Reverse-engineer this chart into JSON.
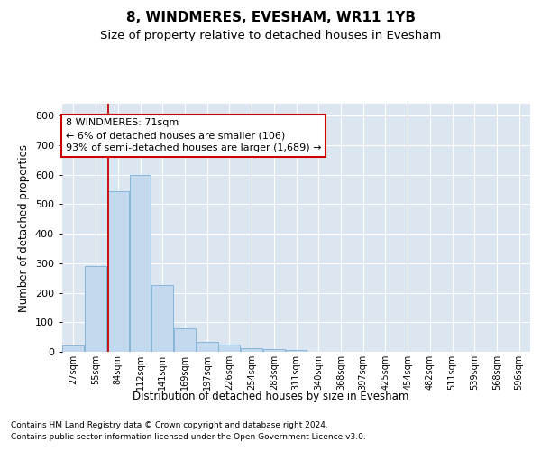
{
  "title": "8, WINDMERES, EVESHAM, WR11 1YB",
  "subtitle": "Size of property relative to detached houses in Evesham",
  "xlabel": "Distribution of detached houses by size in Evesham",
  "ylabel": "Number of detached properties",
  "footer_line1": "Contains HM Land Registry data © Crown copyright and database right 2024.",
  "footer_line2": "Contains public sector information licensed under the Open Government Licence v3.0.",
  "bar_labels": [
    "27sqm",
    "55sqm",
    "84sqm",
    "112sqm",
    "141sqm",
    "169sqm",
    "197sqm",
    "226sqm",
    "254sqm",
    "283sqm",
    "311sqm",
    "340sqm",
    "368sqm",
    "397sqm",
    "425sqm",
    "454sqm",
    "482sqm",
    "511sqm",
    "539sqm",
    "568sqm",
    "596sqm"
  ],
  "bar_values": [
    22,
    290,
    545,
    598,
    225,
    80,
    34,
    23,
    12,
    10,
    6,
    0,
    0,
    0,
    0,
    0,
    0,
    0,
    0,
    0,
    0
  ],
  "bar_color": "#c5d9ee",
  "bar_edge_color": "#7bafd4",
  "plot_bg_color": "#dce6f1",
  "annotation_text": "8 WINDMERES: 71sqm\n← 6% of detached houses are smaller (106)\n93% of semi-detached houses are larger (1,689) →",
  "annotation_box_edge": "#cc0000",
  "vline_x_bin": 1.5,
  "vline_color": "#cc0000",
  "ylim": [
    0,
    840
  ],
  "yticks": [
    0,
    100,
    200,
    300,
    400,
    500,
    600,
    700,
    800
  ],
  "title_fontsize": 11,
  "subtitle_fontsize": 9.5,
  "annotation_fontsize": 8,
  "ylabel_fontsize": 8.5,
  "xlabel_fontsize": 8.5,
  "footer_fontsize": 6.5
}
